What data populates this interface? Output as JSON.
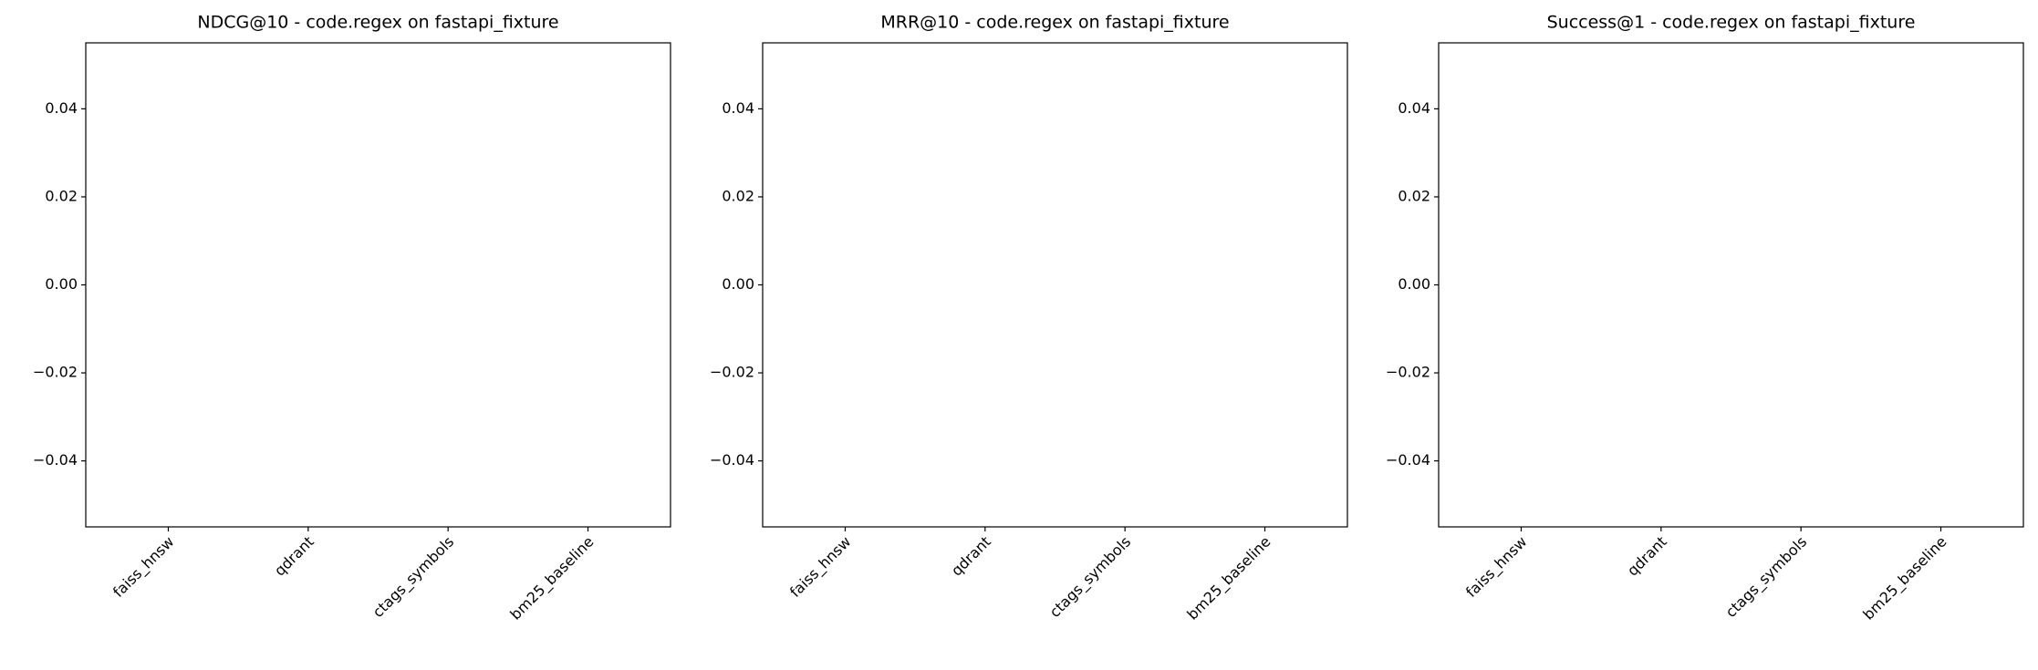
{
  "chart_data": [
    {
      "type": "bar",
      "title": "NDCG@10 - code.regex on fastapi_fixture",
      "categories": [
        "faiss_hnsw",
        "qdrant",
        "ctags_symbols",
        "bm25_baseline"
      ],
      "values": [
        0,
        0,
        0,
        0
      ],
      "color": "#1f77b4",
      "ylim": [
        -0.055,
        0.055
      ],
      "yticks": [
        {
          "value": -0.04,
          "label": "−0.04"
        },
        {
          "value": -0.02,
          "label": "−0.02"
        },
        {
          "value": 0,
          "label": "0.00"
        },
        0.02,
        0.04
      ]
    },
    {
      "type": "bar",
      "title": "MRR@10 - code.regex on fastapi_fixture",
      "categories": [
        "faiss_hnsw",
        "qdrant",
        "ctags_symbols",
        "bm25_baseline"
      ],
      "values": [
        0,
        0,
        0,
        0
      ],
      "color": "#1f77b4",
      "ylim": [
        -0.055,
        0.055
      ],
      "yticks": [
        {
          "value": -0.04,
          "label": "−0.04"
        },
        {
          "value": -0.02,
          "label": "−0.02"
        },
        {
          "value": 0,
          "label": "0.00"
        },
        0.02,
        0.04
      ]
    },
    {
      "type": "bar",
      "title": "Success@1 - code.regex on fastapi_fixture",
      "categories": [
        "faiss_hnsw",
        "qdrant",
        "ctags_symbols",
        "bm25_baseline"
      ],
      "values": [
        0,
        0,
        0,
        0
      ],
      "color": "#1f77b4",
      "ylim": [
        -0.055,
        0.055
      ],
      "yticks": [
        {
          "value": -0.04,
          "label": "−0.04"
        },
        {
          "value": -0.02,
          "label": "−0.02"
        },
        {
          "value": 0,
          "label": "0.00"
        },
        0.02,
        0.04
      ]
    }
  ]
}
